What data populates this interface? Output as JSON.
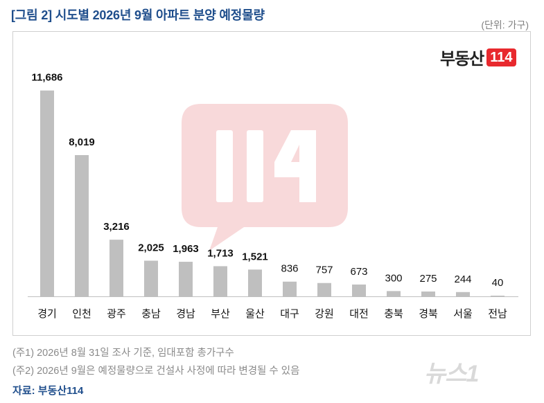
{
  "header": {
    "title": "[그림 2] 시도별 2026년 9월 아파트 분양 예정물량",
    "unit": "(단위: 가구)"
  },
  "brand": {
    "name": "부동산",
    "badge": "114"
  },
  "watermark": {
    "text": "114"
  },
  "chart_data": {
    "type": "bar",
    "categories": [
      "경기",
      "인천",
      "광주",
      "충남",
      "경남",
      "부산",
      "울산",
      "대구",
      "강원",
      "대전",
      "충북",
      "경북",
      "서울",
      "전남"
    ],
    "values": [
      11686,
      8019,
      3216,
      2025,
      1963,
      1713,
      1521,
      836,
      757,
      673,
      300,
      275,
      244,
      40
    ],
    "value_labels": [
      "11,686",
      "8,019",
      "3,216",
      "2,025",
      "1,963",
      "1,713",
      "1,521",
      "836",
      "757",
      "673",
      "300",
      "275",
      "244",
      "40"
    ],
    "bold_labels_count": 7,
    "ylim": [
      0,
      12500
    ],
    "bar_color": "#bfbfbf",
    "grid": false
  },
  "notes": [
    "(주1) 2026년 8월 31일 조사 기준, 임대포함 총가구수",
    "(주2) 2026년 9월은 예정물량으로 건설사 사정에 따라 변경될 수 있음"
  ],
  "source": "자료: 부동산114",
  "news_mark": "뉴스1",
  "colors": {
    "accent": "#1f4e8c",
    "brand_red": "#e8292e",
    "bar": "#bfbfbf"
  }
}
